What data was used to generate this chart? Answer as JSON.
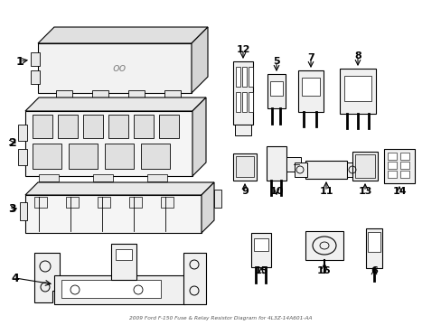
{
  "title": "2009 Ford F-150 Fuse & Relay Resistor Diagram for 4L3Z-14A601-AA",
  "bg_color": "#ffffff",
  "line_color": "#000000",
  "figsize": [
    4.89,
    3.6
  ],
  "dpi": 100,
  "components": {
    "labels_top": [
      "1",
      "2",
      "3",
      "4"
    ],
    "labels_right_top": [
      "12",
      "5",
      "7",
      "8"
    ],
    "labels_right_mid": [
      "9",
      "10",
      "11",
      "13",
      "14"
    ],
    "labels_right_bot": [
      "15",
      "16",
      "6"
    ]
  }
}
